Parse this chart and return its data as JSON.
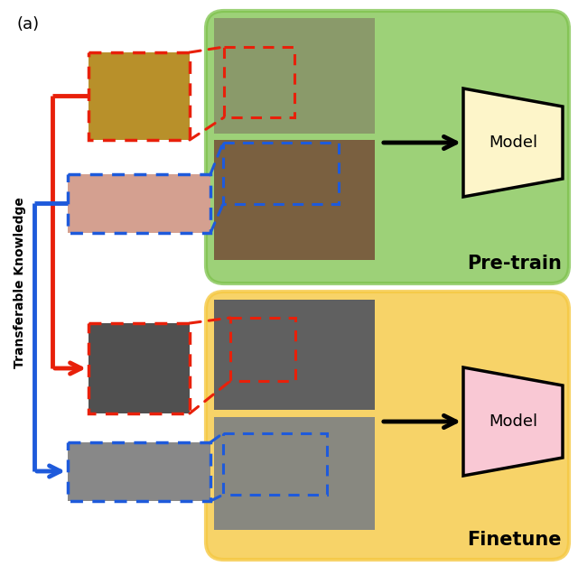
{
  "fig_width": 6.4,
  "fig_height": 6.27,
  "bg_color": "#ffffff",
  "pretrain_box_color": "#7dc24b",
  "finetune_box_color": "#f5c842",
  "model_top_color": "#fdf5c9",
  "model_bottom_color": "#f9c8d4",
  "red_color": "#e8200a",
  "blue_color": "#1e5adb",
  "text_label_pretrain": "Pre-train",
  "text_label_finetune": "Finetune",
  "text_model": "Model",
  "text_transferable": "Transferable Knowledge",
  "title_text": "(a)"
}
